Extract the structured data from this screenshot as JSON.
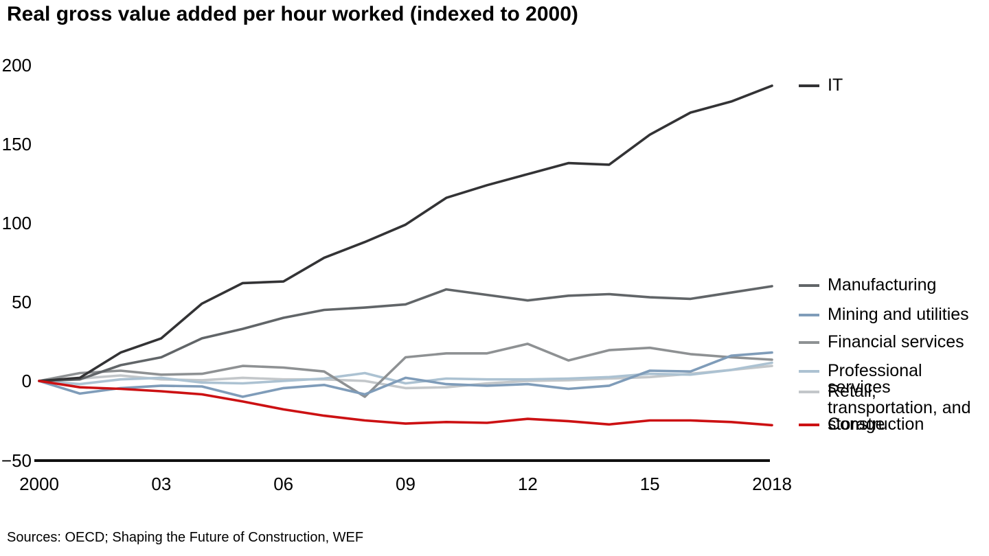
{
  "title": "Real gross value added per hour worked (indexed to 2000)",
  "source": "Sources: OECD; Shaping the Future of Construction, WEF",
  "chart_data": {
    "type": "line",
    "title": "Real gross value added per hour worked (indexed to 2000)",
    "xlabel": "",
    "ylabel": "",
    "xlim": [
      2000,
      2018
    ],
    "ylim": [
      -50,
      200
    ],
    "grid": false,
    "legend_position": "right",
    "x": [
      2000,
      2001,
      2002,
      2003,
      2004,
      2005,
      2006,
      2007,
      2008,
      2009,
      2010,
      2011,
      2012,
      2013,
      2014,
      2015,
      2016,
      2017,
      2018
    ],
    "x_ticks": [
      2000,
      2003,
      2006,
      2009,
      2012,
      2015,
      2018
    ],
    "x_tick_labels": [
      "2000",
      "03",
      "06",
      "09",
      "12",
      "15",
      "2018"
    ],
    "y_ticks": [
      -50,
      0,
      50,
      100,
      150,
      200
    ],
    "y_tick_labels": [
      "−50",
      "0",
      "50",
      "100",
      "150",
      "200"
    ],
    "axis_color": "#111111",
    "series": [
      {
        "name": "IT",
        "color": "#333335",
        "values": [
          0,
          2,
          18,
          27,
          49,
          62,
          63,
          78,
          88,
          99,
          116,
          124,
          131,
          138,
          137,
          156,
          170,
          177,
          187
        ]
      },
      {
        "name": "Manufacturing",
        "color": "#616568",
        "values": [
          0,
          1,
          10,
          15,
          27,
          33,
          40,
          45,
          46.5,
          48.5,
          58,
          54.5,
          51,
          54,
          55,
          53,
          52,
          56,
          60
        ]
      },
      {
        "name": "Mining and utilities",
        "color": "#7f9cb9",
        "values": [
          0,
          -8,
          -4.5,
          -3,
          -3.5,
          -10,
          -4.5,
          -2.5,
          -8.5,
          2,
          -2,
          -3,
          -2,
          -5,
          -3,
          6.5,
          6,
          16,
          18
        ]
      },
      {
        "name": "Financial services",
        "color": "#8e9193",
        "values": [
          0,
          5,
          6.5,
          4,
          4.5,
          9.5,
          8.5,
          6,
          -10,
          15,
          17.5,
          17.5,
          23.5,
          13,
          19.5,
          21,
          17,
          15,
          13.5
        ]
      },
      {
        "name": "Professional services",
        "color": "#acc2d2",
        "values": [
          0,
          -2,
          1,
          2,
          -1,
          -1.5,
          0,
          1.5,
          5,
          -1.5,
          1.5,
          1,
          1,
          1.5,
          2.5,
          4.5,
          4,
          7,
          11.5
        ]
      },
      {
        "name": "Retail, transportation, and storage",
        "color": "#c3c7ca",
        "values": [
          0,
          1.5,
          3.5,
          1,
          0.5,
          2,
          1,
          1,
          0,
          -4.5,
          -4,
          -1.5,
          0,
          0.5,
          1.5,
          2.5,
          4.5,
          7,
          9.5
        ]
      },
      {
        "name": "Construction",
        "color": "#cc1113",
        "values": [
          0,
          -4,
          -5,
          -6.5,
          -8.5,
          -13,
          -18,
          -22,
          -25,
          -27,
          -26,
          -26.5,
          -24,
          -25.5,
          -27.5,
          -25,
          -25,
          -26,
          -28
        ]
      }
    ]
  }
}
